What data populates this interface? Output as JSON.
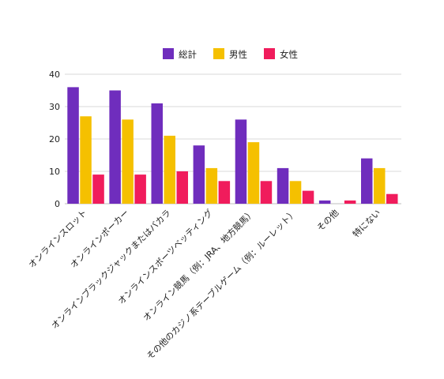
{
  "chart_data": {
    "type": "bar",
    "categories": [
      "オンラインスロット",
      "オンラインポーカー",
      "オンラインブラックジャックまたはバカラ",
      "オンラインスポーツベッティング",
      "オンライン競馬（例：JRA、地方競馬）",
      "その他のカジノ系テーブルゲーム（例：ルーレット）",
      "その他",
      "特にない"
    ],
    "series": [
      {
        "name": "総計",
        "color": "#6f2dbd",
        "values": [
          36,
          35,
          31,
          18,
          26,
          11,
          1,
          14
        ]
      },
      {
        "name": "男性",
        "color": "#f5c000",
        "values": [
          27,
          26,
          21,
          11,
          19,
          7,
          0,
          11
        ]
      },
      {
        "name": "女性",
        "color": "#f01c5c",
        "values": [
          9,
          9,
          10,
          7,
          7,
          4,
          1,
          3
        ]
      }
    ],
    "ylim": [
      0,
      40
    ],
    "yticks": [
      0,
      10,
      20,
      30,
      40
    ],
    "grid": true,
    "legend_position": "top-center",
    "title": "",
    "xlabel": "",
    "ylabel": ""
  }
}
